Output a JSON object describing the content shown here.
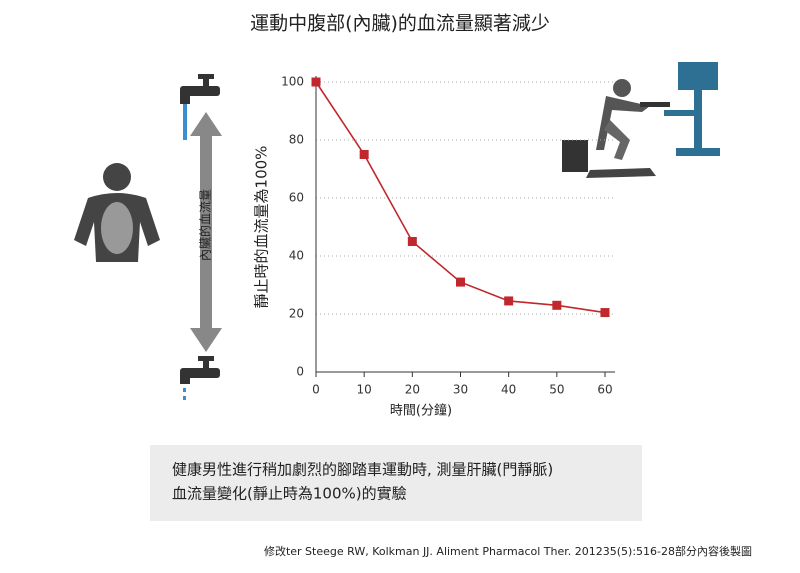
{
  "chart_data": {
    "type": "line",
    "title": "運動中腹部(內臟)的血流量顯著減少",
    "x_label": "時間(分鐘)",
    "y_label": "靜止時的血流量為100%",
    "x": [
      0,
      10,
      20,
      30,
      40,
      50,
      60
    ],
    "series": [
      {
        "name": "血流量",
        "color": "#c0282d",
        "values": [
          100,
          75,
          45,
          31,
          24.5,
          23,
          20.5
        ]
      }
    ],
    "xlim": [
      0,
      60
    ],
    "xticks": [
      0,
      10,
      20,
      30,
      40,
      50,
      60
    ],
    "ylim": [
      0,
      100
    ],
    "yticks": [
      0,
      20,
      40,
      60,
      80,
      100
    ],
    "grid": true,
    "arrow_label": "內臟的血流量",
    "caption": [
      "健康男性進行稍加劇烈的腳踏車運動時, 測量肝臟(門靜脈)",
      "血流量變化(靜止時為100%)的實驗"
    ],
    "source": "修改ter Steege RW, Kolkman JJ. Aliment Pharmacol Ther. 201235(5):516-28部分內容後製圖"
  }
}
